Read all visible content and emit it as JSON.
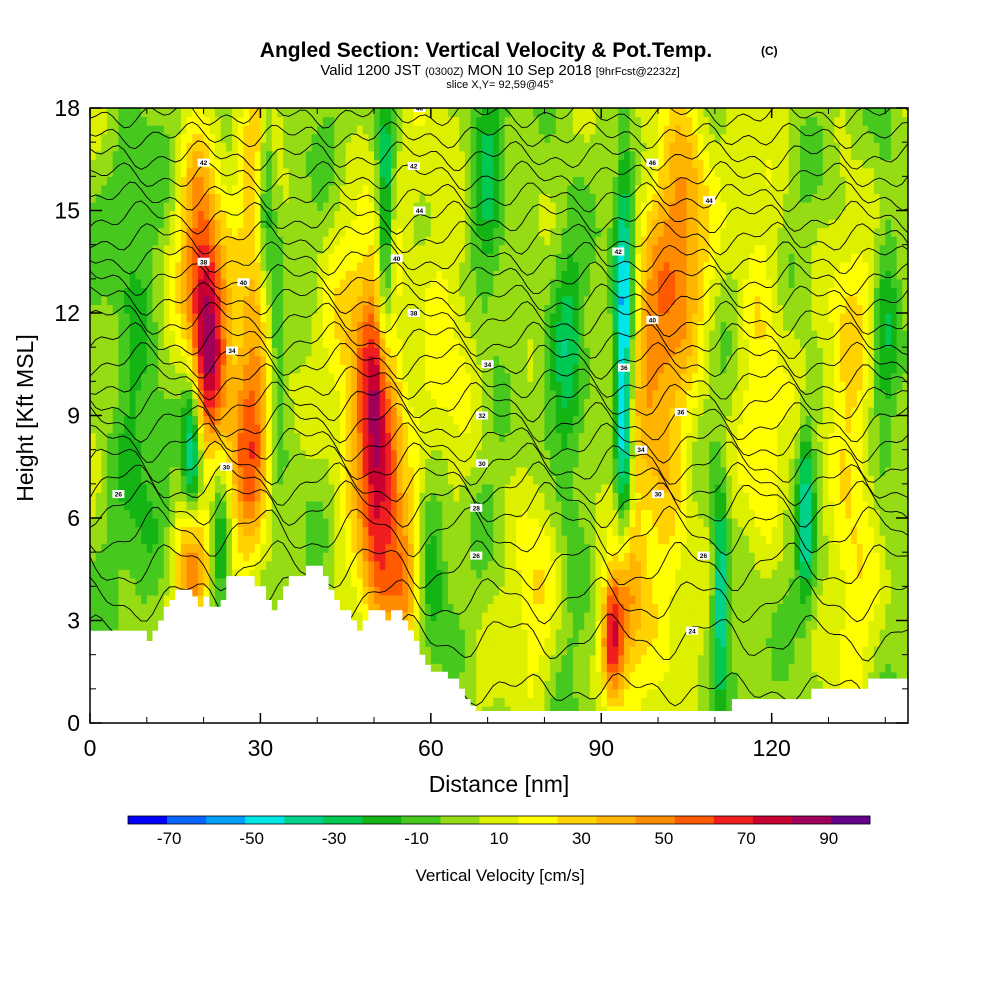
{
  "chart_data": {
    "type": "heatmap",
    "title": "Angled Section: Vertical Velocity & Pot.Temp.",
    "title_suffix": "(C)",
    "subtitle": {
      "valid_prefix": "Valid 1200 JST",
      "valid_z": "(0300Z)",
      "valid_date": "MON 10 Sep 2018",
      "forecast": "[9hrFcst@2232z]"
    },
    "slice_label": "slice X,Y= 92,59@45°",
    "xlabel": "Distance [nm]",
    "ylabel": "Height [Kft MSL]",
    "xlim": [
      0,
      144
    ],
    "ylim": [
      0,
      18
    ],
    "x_ticks": [
      "0",
      "30",
      "60",
      "90",
      "120"
    ],
    "x_tick_values": [
      0,
      30,
      60,
      90,
      120
    ],
    "y_ticks": [
      "0",
      "3",
      "6",
      "9",
      "12",
      "15",
      "18"
    ],
    "y_tick_values": [
      0,
      3,
      6,
      9,
      12,
      15,
      18
    ],
    "colorbar": {
      "label": "Vertical Velocity [cm/s]",
      "tick_labels": [
        "-70",
        "-50",
        "-30",
        "-10",
        "10",
        "30",
        "50",
        "70",
        "90"
      ],
      "levels": [
        -80,
        -70,
        -60,
        -50,
        -40,
        -30,
        -20,
        -10,
        0,
        10,
        20,
        30,
        40,
        50,
        60,
        70,
        80,
        90,
        100
      ],
      "colors": [
        "#0000ff",
        "#0a64ff",
        "#00a0ff",
        "#00e6e6",
        "#00d28c",
        "#00c850",
        "#14b414",
        "#46c81e",
        "#96dc14",
        "#dcf000",
        "#ffff00",
        "#ffd200",
        "#ffb400",
        "#ff8c00",
        "#ff5a00",
        "#f01e1e",
        "#c80032",
        "#a0005a",
        "#64008c"
      ]
    },
    "background_value": 5,
    "updrafts": [
      {
        "x": 21,
        "z": 11,
        "w": 78,
        "sx": 2.5,
        "sz": 2.2
      },
      {
        "x": 19,
        "z": 14,
        "w": 40,
        "sx": 2.5,
        "sz": 3.0
      },
      {
        "x": 18,
        "z": 4.5,
        "w": 55,
        "sx": 2.0,
        "sz": 1.5
      },
      {
        "x": 28,
        "z": 8.5,
        "w": 55,
        "sx": 2.5,
        "sz": 3.0
      },
      {
        "x": 30,
        "z": 15,
        "w": 35,
        "sx": 2.5,
        "sz": 3.0
      },
      {
        "x": 51,
        "z": 7.5,
        "w": 70,
        "sx": 2.5,
        "sz": 3.5
      },
      {
        "x": 48,
        "z": 10,
        "w": 40,
        "sx": 4.0,
        "sz": 3.0
      },
      {
        "x": 56,
        "z": 4.0,
        "w": 45,
        "sx": 2.0,
        "sz": 1.5
      },
      {
        "x": 92,
        "z": 2.5,
        "w": 80,
        "sx": 1.5,
        "sz": 1.3
      },
      {
        "x": 100,
        "z": 10,
        "w": 45,
        "sx": 4.0,
        "sz": 5.0
      },
      {
        "x": 105,
        "z": 15,
        "w": 35,
        "sx": 3.0,
        "sz": 3.0
      },
      {
        "x": 95,
        "z": 4.0,
        "w": 40,
        "sx": 1.8,
        "sz": 2.0
      },
      {
        "x": 134,
        "z": 8.0,
        "w": 30,
        "sx": 3.0,
        "sz": 5.0
      },
      {
        "x": 62,
        "z": 12,
        "w": 20,
        "sx": 4.0,
        "sz": 4.0
      },
      {
        "x": 78,
        "z": 4.0,
        "w": 20,
        "sx": 3.0,
        "sz": 3.0
      },
      {
        "x": 118,
        "z": 11,
        "w": 25,
        "sx": 3.0,
        "sz": 4.0
      }
    ],
    "downdrafts": [
      {
        "x": 18,
        "z": 8.0,
        "w": -55,
        "sx": 1.2,
        "sz": 2.0
      },
      {
        "x": 23,
        "z": 5.0,
        "w": -35,
        "sx": 1.2,
        "sz": 1.5
      },
      {
        "x": 31,
        "z": 15.5,
        "w": -40,
        "sx": 1.0,
        "sz": 2.5
      },
      {
        "x": 33,
        "z": 11,
        "w": -30,
        "sx": 1.0,
        "sz": 2.5
      },
      {
        "x": 52,
        "z": 14,
        "w": -50,
        "sx": 1.0,
        "sz": 3.0
      },
      {
        "x": 94,
        "z": 12,
        "w": -60,
        "sx": 1.2,
        "sz": 3.5
      },
      {
        "x": 94,
        "z": 8.0,
        "w": -40,
        "sx": 1.0,
        "sz": 2.0
      },
      {
        "x": 111,
        "z": 4.0,
        "w": -55,
        "sx": 1.0,
        "sz": 2.0
      },
      {
        "x": 126,
        "z": 6.0,
        "w": -40,
        "sx": 1.0,
        "sz": 2.0
      },
      {
        "x": 60,
        "z": 5.0,
        "w": -25,
        "sx": 2.0,
        "sz": 2.0
      },
      {
        "x": 84,
        "z": 10,
        "w": -25,
        "sx": 2.0,
        "sz": 4.0
      },
      {
        "x": 140,
        "z": 12,
        "w": -20,
        "sx": 1.5,
        "sz": 4.0
      },
      {
        "x": 8,
        "z": 10,
        "w": -20,
        "sx": 3.0,
        "sz": 4.0
      },
      {
        "x": 70,
        "z": 15,
        "w": -25,
        "sx": 2.0,
        "sz": 3.0
      }
    ],
    "terrain_kft": [
      [
        0,
        2.7
      ],
      [
        10,
        2.7
      ],
      [
        10,
        2.4
      ],
      [
        11,
        2.4
      ],
      [
        11,
        2.7
      ],
      [
        12,
        2.7
      ],
      [
        12,
        3.0
      ],
      [
        13,
        3.0
      ],
      [
        13,
        3.4
      ],
      [
        14,
        3.4
      ],
      [
        14,
        3.6
      ],
      [
        15,
        3.6
      ],
      [
        15,
        3.9
      ],
      [
        18,
        3.9
      ],
      [
        18,
        3.7
      ],
      [
        19,
        3.7
      ],
      [
        19,
        3.4
      ],
      [
        20,
        3.4
      ],
      [
        20,
        3.7
      ],
      [
        21,
        3.7
      ],
      [
        21,
        3.4
      ],
      [
        23,
        3.4
      ],
      [
        23,
        3.6
      ],
      [
        24,
        3.6
      ],
      [
        24,
        4.3
      ],
      [
        29,
        4.3
      ],
      [
        29,
        4.0
      ],
      [
        31,
        4.0
      ],
      [
        31,
        3.6
      ],
      [
        32,
        3.6
      ],
      [
        32,
        3.3
      ],
      [
        33,
        3.3
      ],
      [
        33,
        3.6
      ],
      [
        34,
        3.6
      ],
      [
        34,
        4.0
      ],
      [
        35,
        4.0
      ],
      [
        35,
        4.3
      ],
      [
        38,
        4.3
      ],
      [
        38,
        4.6
      ],
      [
        41,
        4.6
      ],
      [
        41,
        4.3
      ],
      [
        42,
        4.3
      ],
      [
        42,
        3.9
      ],
      [
        43,
        3.9
      ],
      [
        43,
        3.6
      ],
      [
        44,
        3.6
      ],
      [
        44,
        3.3
      ],
      [
        46,
        3.3
      ],
      [
        46,
        3.0
      ],
      [
        47,
        3.0
      ],
      [
        47,
        2.7
      ],
      [
        48,
        2.7
      ],
      [
        48,
        3.0
      ],
      [
        49,
        3.0
      ],
      [
        49,
        3.3
      ],
      [
        52,
        3.3
      ],
      [
        52,
        3.0
      ],
      [
        53,
        3.0
      ],
      [
        53,
        3.3
      ],
      [
        55,
        3.3
      ],
      [
        55,
        3.0
      ],
      [
        56,
        3.0
      ],
      [
        56,
        2.7
      ],
      [
        57,
        2.7
      ],
      [
        57,
        2.4
      ],
      [
        58,
        2.4
      ],
      [
        58,
        2.0
      ],
      [
        59,
        2.0
      ],
      [
        59,
        1.7
      ],
      [
        60,
        1.7
      ],
      [
        60,
        1.5
      ],
      [
        63,
        1.5
      ],
      [
        63,
        1.3
      ],
      [
        65,
        1.3
      ],
      [
        65,
        1.0
      ],
      [
        66,
        1.0
      ],
      [
        66,
        0.7
      ],
      [
        67,
        0.7
      ],
      [
        67,
        0.5
      ],
      [
        68,
        0.5
      ],
      [
        68,
        0.35
      ],
      [
        113,
        0.35
      ],
      [
        113,
        0.7
      ],
      [
        127,
        0.7
      ],
      [
        127,
        1.0
      ],
      [
        137,
        1.0
      ],
      [
        137,
        1.3
      ],
      [
        144,
        1.3
      ]
    ],
    "theta_lines": [
      {
        "z": 1.0,
        "amp": 0.3
      },
      {
        "z": 2.5,
        "amp": 0.5
      },
      {
        "z": 3.6,
        "amp": 0.5
      },
      {
        "z": 4.6,
        "amp": 0.55
      },
      {
        "z": 5.6,
        "amp": 0.55
      },
      {
        "z": 6.4,
        "amp": 0.5
      },
      {
        "z": 7.0,
        "amp": 0.45
      },
      {
        "z": 7.6,
        "amp": 0.45
      },
      {
        "z": 8.2,
        "amp": 0.4
      },
      {
        "z": 8.8,
        "amp": 0.4
      },
      {
        "z": 9.4,
        "amp": 0.4
      },
      {
        "z": 10.0,
        "amp": 0.35
      },
      {
        "z": 10.6,
        "amp": 0.35
      },
      {
        "z": 11.2,
        "amp": 0.35
      },
      {
        "z": 11.8,
        "amp": 0.35
      },
      {
        "z": 12.4,
        "amp": 0.3
      },
      {
        "z": 13.0,
        "amp": 0.3
      },
      {
        "z": 13.6,
        "amp": 0.3
      },
      {
        "z": 14.2,
        "amp": 0.3
      },
      {
        "z": 14.8,
        "amp": 0.3
      },
      {
        "z": 15.4,
        "amp": 0.25
      },
      {
        "z": 16.0,
        "amp": 0.25
      },
      {
        "z": 16.6,
        "amp": 0.25
      },
      {
        "z": 17.2,
        "amp": 0.2
      },
      {
        "z": 17.8,
        "amp": 0.2
      }
    ],
    "theta_labels": [
      {
        "x": 5,
        "z": 6.7,
        "text": "26"
      },
      {
        "x": 20,
        "z": 13.5,
        "text": "38"
      },
      {
        "x": 20,
        "z": 16.4,
        "text": "42"
      },
      {
        "x": 25,
        "z": 10.9,
        "text": "34"
      },
      {
        "x": 27,
        "z": 12.9,
        "text": "40"
      },
      {
        "x": 24,
        "z": 7.5,
        "text": "30"
      },
      {
        "x": 58,
        "z": 18.0,
        "text": "46"
      },
      {
        "x": 57,
        "z": 16.3,
        "text": "42"
      },
      {
        "x": 58,
        "z": 15.0,
        "text": "44"
      },
      {
        "x": 54,
        "z": 13.6,
        "text": "40"
      },
      {
        "x": 57,
        "z": 12.0,
        "text": "38"
      },
      {
        "x": 70,
        "z": 10.5,
        "text": "34"
      },
      {
        "x": 69,
        "z": 9.0,
        "text": "32"
      },
      {
        "x": 69,
        "z": 7.6,
        "text": "30"
      },
      {
        "x": 68,
        "z": 6.3,
        "text": "28"
      },
      {
        "x": 68,
        "z": 4.9,
        "text": "26"
      },
      {
        "x": 99,
        "z": 16.4,
        "text": "46"
      },
      {
        "x": 109,
        "z": 15.3,
        "text": "44"
      },
      {
        "x": 93,
        "z": 13.8,
        "text": "42"
      },
      {
        "x": 99,
        "z": 11.8,
        "text": "40"
      },
      {
        "x": 94,
        "z": 10.4,
        "text": "36"
      },
      {
        "x": 104,
        "z": 9.1,
        "text": "36"
      },
      {
        "x": 97,
        "z": 8.0,
        "text": "34"
      },
      {
        "x": 100,
        "z": 6.7,
        "text": "30"
      },
      {
        "x": 108,
        "z": 4.9,
        "text": "26"
      },
      {
        "x": 106,
        "z": 2.7,
        "text": "24"
      }
    ]
  }
}
